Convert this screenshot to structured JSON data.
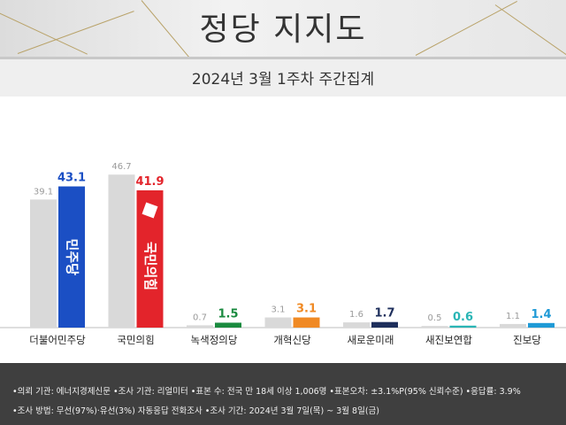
{
  "header": {
    "title": "정당 지지도",
    "subtitle": "2024년 3월 1주차 주간집계"
  },
  "chart_data": {
    "type": "bar",
    "title": "정당 지지도",
    "subtitle": "2024년 3월 1주차 주간집계",
    "categories": [
      "더불어민주당",
      "국민의힘",
      "녹색정의당",
      "개혁신당",
      "새로운미래",
      "새진보연합",
      "진보당"
    ],
    "series": [
      {
        "values": [
          39.1,
          46.7,
          0.7,
          3.1,
          1.6,
          0.5,
          1.1
        ]
      },
      {
        "values": [
          43.1,
          41.9,
          1.5,
          3.1,
          1.7,
          0.6,
          1.4
        ]
      }
    ],
    "colors": {
      "previous": "#d9d9d9",
      "current": [
        "#1b4fc4",
        "#e3242b",
        "#1a8a3f",
        "#f08a24",
        "#1e2f5c",
        "#2ab5b5",
        "#1f9ad6"
      ],
      "label": [
        "#1b4fc4",
        "#e3242b",
        "#1a8a3f",
        "#f08a24",
        "#1e2f5c",
        "#2ab5b5",
        "#1f9ad6"
      ]
    },
    "logos": [
      "민주당",
      "국민의힘"
    ],
    "ylim": [
      0,
      50
    ],
    "grid": false,
    "legend": "none"
  },
  "footer": {
    "line1": "•의뢰 기관: 에너지경제신문  •조사 기관: 리얼미터  •표본 수: 전국 만 18세 이상 1,006명  •표본오차: ±3.1%P(95% 신뢰수준)  •응답률: 3.9%",
    "line2": "•조사 방법: 무선(97%)·유선(3%) 자동응답 전화조사  •조사 기간: 2024년 3월 7일(목) ~ 3월 8일(금)"
  }
}
